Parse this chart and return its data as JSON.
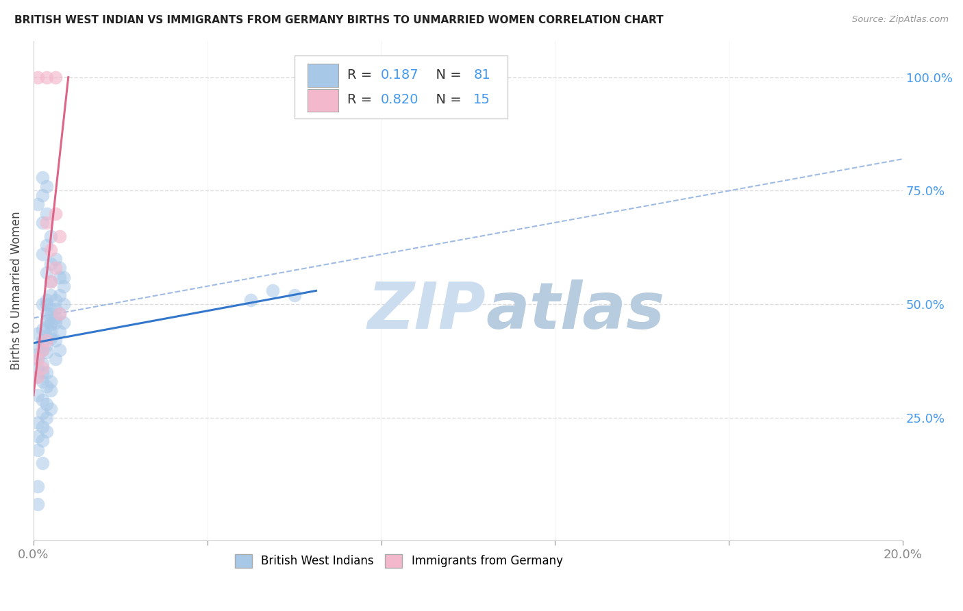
{
  "title": "BRITISH WEST INDIAN VS IMMIGRANTS FROM GERMANY BIRTHS TO UNMARRIED WOMEN CORRELATION CHART",
  "source": "Source: ZipAtlas.com",
  "ylabel": "Births to Unmarried Women",
  "R_blue": 0.187,
  "N_blue": 81,
  "R_pink": 0.82,
  "N_pink": 15,
  "xlim": [
    0.0,
    0.2
  ],
  "ylim": [
    -0.02,
    1.08
  ],
  "yticks": [
    0.25,
    0.5,
    0.75,
    1.0
  ],
  "ytick_labels": [
    "25.0%",
    "50.0%",
    "75.0%",
    "100.0%"
  ],
  "xticks": [
    0.0,
    0.04,
    0.08,
    0.12,
    0.16,
    0.2
  ],
  "xtick_labels": [
    "0.0%",
    "",
    "",
    "",
    "",
    "20.0%"
  ],
  "blue_scatter_color": "#a8c8e8",
  "pink_scatter_color": "#f4b8cc",
  "blue_line_color": "#3377cc",
  "pink_line_color": "#dd6688",
  "dash_line_color": "#88aadd",
  "blue_scatter": [
    [
      0.002,
      0.42
    ],
    [
      0.003,
      0.43
    ],
    [
      0.004,
      0.44
    ],
    [
      0.001,
      0.39
    ],
    [
      0.002,
      0.4
    ],
    [
      0.001,
      0.38
    ],
    [
      0.003,
      0.41
    ],
    [
      0.002,
      0.37
    ],
    [
      0.001,
      0.36
    ],
    [
      0.003,
      0.45
    ],
    [
      0.004,
      0.46
    ],
    [
      0.002,
      0.35
    ],
    [
      0.001,
      0.34
    ],
    [
      0.003,
      0.48
    ],
    [
      0.004,
      0.49
    ],
    [
      0.002,
      0.5
    ],
    [
      0.003,
      0.51
    ],
    [
      0.004,
      0.52
    ],
    [
      0.005,
      0.47
    ],
    [
      0.004,
      0.455
    ],
    [
      0.003,
      0.465
    ],
    [
      0.002,
      0.445
    ],
    [
      0.001,
      0.435
    ],
    [
      0.003,
      0.395
    ],
    [
      0.002,
      0.415
    ],
    [
      0.004,
      0.425
    ],
    [
      0.001,
      0.405
    ],
    [
      0.005,
      0.49
    ],
    [
      0.004,
      0.48
    ],
    [
      0.003,
      0.5
    ],
    [
      0.002,
      0.33
    ],
    [
      0.003,
      0.32
    ],
    [
      0.004,
      0.31
    ],
    [
      0.001,
      0.3
    ],
    [
      0.002,
      0.29
    ],
    [
      0.003,
      0.28
    ],
    [
      0.004,
      0.27
    ],
    [
      0.002,
      0.26
    ],
    [
      0.003,
      0.25
    ],
    [
      0.001,
      0.24
    ],
    [
      0.002,
      0.23
    ],
    [
      0.001,
      0.21
    ],
    [
      0.003,
      0.22
    ],
    [
      0.002,
      0.2
    ],
    [
      0.001,
      0.18
    ],
    [
      0.002,
      0.15
    ],
    [
      0.001,
      0.1
    ],
    [
      0.001,
      0.06
    ],
    [
      0.005,
      0.38
    ],
    [
      0.006,
      0.4
    ],
    [
      0.005,
      0.42
    ],
    [
      0.006,
      0.44
    ],
    [
      0.005,
      0.46
    ],
    [
      0.006,
      0.48
    ],
    [
      0.007,
      0.5
    ],
    [
      0.006,
      0.52
    ],
    [
      0.007,
      0.46
    ],
    [
      0.005,
      0.51
    ],
    [
      0.007,
      0.54
    ],
    [
      0.006,
      0.56
    ],
    [
      0.05,
      0.51
    ],
    [
      0.055,
      0.53
    ],
    [
      0.06,
      0.52
    ],
    [
      0.002,
      0.68
    ],
    [
      0.003,
      0.7
    ],
    [
      0.001,
      0.72
    ],
    [
      0.002,
      0.74
    ],
    [
      0.003,
      0.76
    ],
    [
      0.002,
      0.78
    ],
    [
      0.004,
      0.65
    ],
    [
      0.003,
      0.63
    ],
    [
      0.002,
      0.61
    ],
    [
      0.004,
      0.59
    ],
    [
      0.003,
      0.57
    ],
    [
      0.004,
      0.55
    ],
    [
      0.005,
      0.6
    ],
    [
      0.006,
      0.58
    ],
    [
      0.007,
      0.56
    ],
    [
      0.003,
      0.35
    ],
    [
      0.004,
      0.33
    ]
  ],
  "pink_scatter": [
    [
      0.001,
      0.38
    ],
    [
      0.002,
      0.36
    ],
    [
      0.001,
      0.34
    ],
    [
      0.002,
      0.4
    ],
    [
      0.003,
      0.42
    ],
    [
      0.004,
      0.55
    ],
    [
      0.005,
      0.58
    ],
    [
      0.004,
      0.62
    ],
    [
      0.006,
      0.65
    ],
    [
      0.003,
      0.68
    ],
    [
      0.005,
      0.7
    ],
    [
      0.006,
      0.48
    ],
    [
      0.001,
      1.0
    ],
    [
      0.003,
      1.0
    ],
    [
      0.005,
      1.0
    ]
  ],
  "blue_line_pts": [
    [
      0.0,
      0.415
    ],
    [
      0.065,
      0.53
    ]
  ],
  "pink_line_pts": [
    [
      0.0,
      0.3
    ],
    [
      0.008,
      1.0
    ]
  ],
  "dash_line_pts": [
    [
      0.0,
      0.47
    ],
    [
      0.2,
      0.82
    ]
  ],
  "watermark_zip": "ZIP",
  "watermark_atlas": "atlas",
  "watermark_color": "#ccddf0",
  "background_color": "#ffffff",
  "grid_color": "#dddddd"
}
